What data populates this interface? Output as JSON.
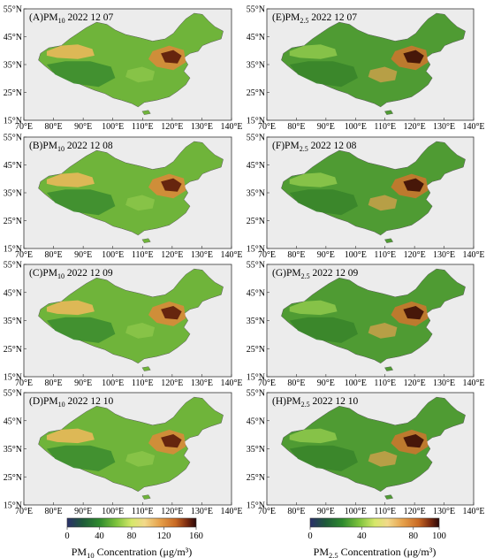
{
  "panels": [
    {
      "id": "A",
      "title_prefix": "(A)PM",
      "title_sub": "10",
      "title_suffix": " 2022 12 07",
      "pollutant": "PM10",
      "date": "2022 12 07"
    },
    {
      "id": "B",
      "title_prefix": "(B)PM",
      "title_sub": "10",
      "title_suffix": " 2022 12 08",
      "pollutant": "PM10",
      "date": "2022 12 08"
    },
    {
      "id": "C",
      "title_prefix": "(C)PM",
      "title_sub": "10",
      "title_suffix": " 2022 12 09",
      "pollutant": "PM10",
      "date": "2022 12 09"
    },
    {
      "id": "D",
      "title_prefix": "(D)PM",
      "title_sub": "10",
      "title_suffix": " 2022 12 10",
      "pollutant": "PM10",
      "date": "2022 12 10"
    },
    {
      "id": "E",
      "title_prefix": "(E)PM",
      "title_sub": "2.5",
      "title_suffix": " 2022 12 07",
      "pollutant": "PM2.5",
      "date": "2022 12 07"
    },
    {
      "id": "F",
      "title_prefix": "(F)PM",
      "title_sub": "2.5",
      "title_suffix": " 2022 12 08",
      "pollutant": "PM2.5",
      "date": "2022 12 08"
    },
    {
      "id": "G",
      "title_prefix": "(G)PM",
      "title_sub": "2.5",
      "title_suffix": " 2022 12 09",
      "pollutant": "PM2.5",
      "date": "2022 12 09"
    },
    {
      "id": "H",
      "title_prefix": "(H)PM",
      "title_sub": "2.5",
      "title_suffix": " 2022 12 10",
      "pollutant": "PM2.5",
      "date": "2022 12 10"
    }
  ],
  "lat_ticks": [
    "15°N",
    "25°N",
    "35°N",
    "45°N",
    "55°N"
  ],
  "lon_ticks": [
    "70°E",
    "80°E",
    "90°E",
    "100°E",
    "110°E",
    "120°E",
    "130°E",
    "140°E"
  ],
  "colorbars": [
    {
      "id": "pm10",
      "ticks": [
        "0",
        "40",
        "80",
        "120",
        "160"
      ],
      "label_prefix": "PM",
      "label_sub": "10",
      "label_suffix": " Concentration (μg/m³)",
      "range": [
        0,
        160
      ]
    },
    {
      "id": "pm25",
      "ticks": [
        "0",
        "40",
        "80",
        "100"
      ],
      "tick_values": [
        0,
        40,
        80,
        100
      ],
      "label_prefix": "PM",
      "label_sub": "2.5",
      "label_suffix": " Concentration (μg/m³)",
      "range": [
        0,
        100
      ]
    }
  ],
  "colors": {
    "ocean": "#ececec",
    "scale": [
      "#2a2f6b",
      "#1e5a3a",
      "#2e8a2e",
      "#7cc23c",
      "#d6e86a",
      "#f2d98a",
      "#e6a04a",
      "#c96a24",
      "#7a2a10",
      "#2a0808"
    ]
  }
}
